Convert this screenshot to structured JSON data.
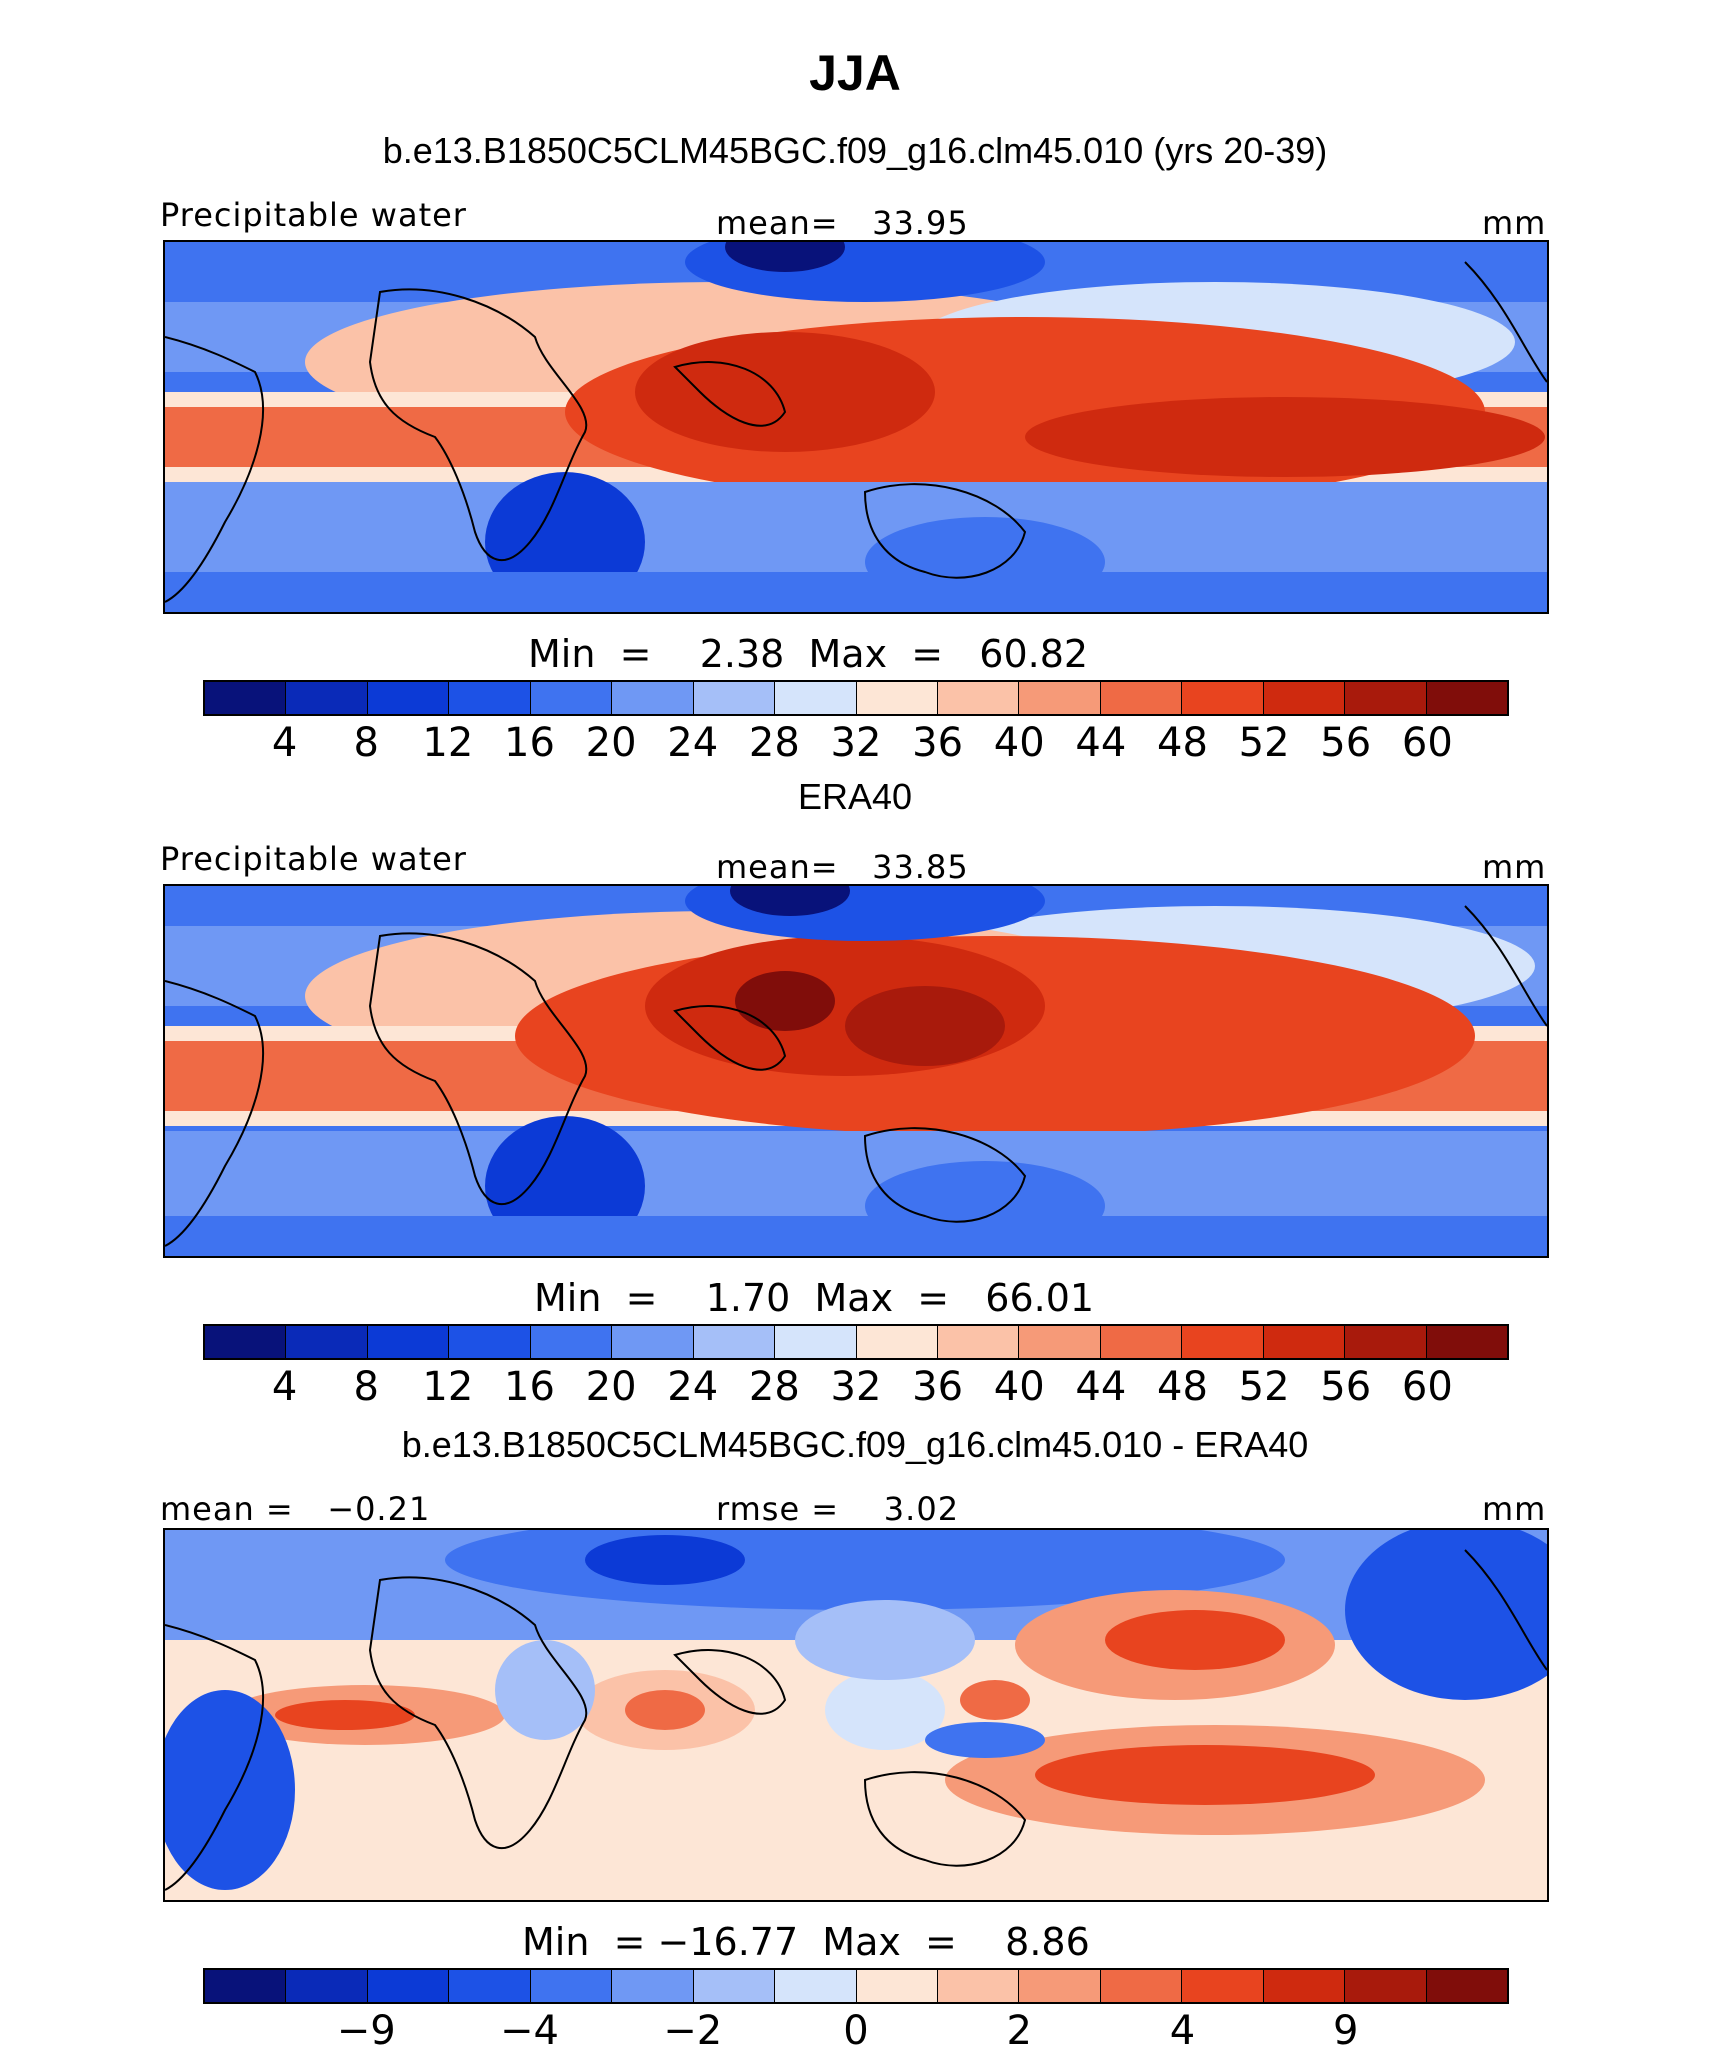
{
  "title": "JJA",
  "panels": [
    {
      "heading": "b.e13.B1850C5CLM45BGC.f09_g16.clm45.010 (yrs 20-39)",
      "left_label": "Precipitable water",
      "center_label": "mean=   33.95",
      "right_label": "mm",
      "stats": "Min  =    2.38  Max  =   60.82",
      "colorbar_ticks": [
        "4",
        "8",
        "12",
        "16",
        "20",
        "24",
        "28",
        "32",
        "36",
        "40",
        "44",
        "48",
        "52",
        "56",
        "60"
      ]
    },
    {
      "heading": "ERA40",
      "left_label": "Precipitable water",
      "center_label": "mean=   33.85",
      "right_label": "mm",
      "stats": "Min  =    1.70  Max  =   66.01",
      "colorbar_ticks": [
        "4",
        "8",
        "12",
        "16",
        "20",
        "24",
        "28",
        "32",
        "36",
        "40",
        "44",
        "48",
        "52",
        "56",
        "60"
      ]
    },
    {
      "heading": "b.e13.B1850C5CLM45BGC.f09_g16.clm45.010 - ERA40",
      "left_label": "mean =   −0.21",
      "center_label": "rmse =    3.02",
      "right_label": "mm",
      "stats": "Min  = −16.77  Max  =    8.86",
      "colorbar_ticks": [
        "−9",
        "−4",
        "−2",
        "0",
        "2",
        "4",
        "9"
      ]
    }
  ],
  "colors": {
    "abs_scale": [
      "#08127a",
      "#0a2ab8",
      "#0c3ad6",
      "#1d52e6",
      "#3f73f0",
      "#6f98f4",
      "#a5bff8",
      "#d5e4fb",
      "#fde6d6",
      "#fbc2a8",
      "#f69a78",
      "#ef6a45",
      "#e8441f",
      "#cf2a0f",
      "#a81a0c",
      "#800d0a"
    ],
    "diff_scale": [
      "#08127a",
      "#0a2ab8",
      "#0c3ad6",
      "#1d52e6",
      "#3f73f0",
      "#6f98f4",
      "#a5bff8",
      "#d5e4fb",
      "#fde6d6",
      "#fbc2a8",
      "#f69a78",
      "#ef6a45",
      "#e8441f",
      "#cf2a0f",
      "#a81a0c",
      "#800d0a"
    ]
  }
}
